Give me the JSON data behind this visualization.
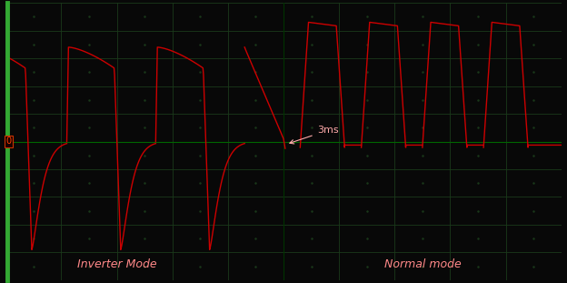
{
  "background_color": "#080808",
  "grid_color": "#1a3a1a",
  "grid_minor_color": "#0f250f",
  "waveform_color": "#cc0000",
  "annotation_color": "#ffaaaa",
  "label_color": "#ff8888",
  "zero_line_color": "#004400",
  "left_bar_color": "#33aa33",
  "figsize": [
    6.24,
    3.11
  ],
  "dpi": 100,
  "annotation_text": "3ms",
  "label_inverter": "Inverter Mode",
  "label_normal": "Normal mode",
  "xlim": [
    0,
    100
  ],
  "ylim": [
    -100,
    100
  ]
}
